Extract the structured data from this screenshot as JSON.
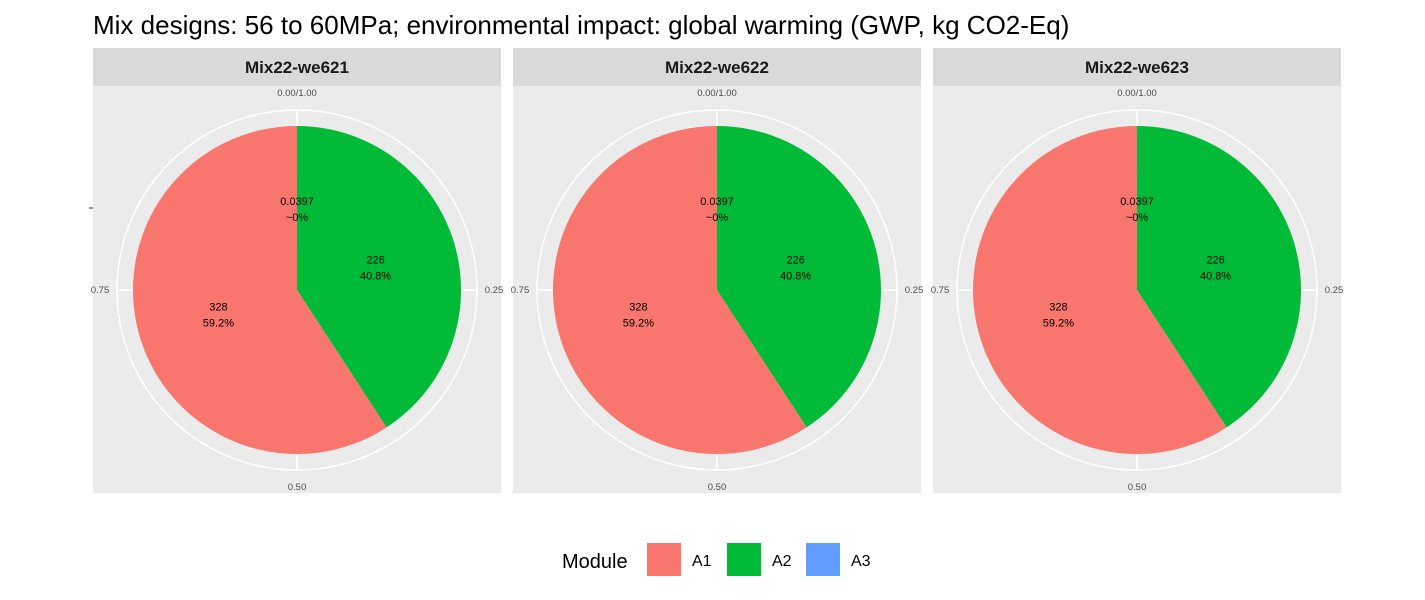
{
  "chart_data": {
    "type": "pie",
    "title": "Mix designs: 56 to 60MPa; environmental impact: global warming (GWP, kg CO2-Eq)",
    "theta_ticks": [
      "0.00/1.00",
      "0.25",
      "0.50",
      "0.75"
    ],
    "legend": {
      "title": "Module",
      "position": "bottom",
      "entries": [
        {
          "label": "A1",
          "color": "#F8766D"
        },
        {
          "label": "A2",
          "color": "#00BA38"
        },
        {
          "label": "A3",
          "color": "#619CFF"
        }
      ]
    },
    "panels": [
      {
        "label": "Mix22-we621",
        "slices": [
          {
            "name": "A3",
            "value": 0.0397,
            "value_label": "0.0397",
            "pct_label": "~0%",
            "color": "#619CFF"
          },
          {
            "name": "A2",
            "value": 226,
            "value_label": "226",
            "pct_label": "40.8%",
            "color": "#00BA38"
          },
          {
            "name": "A1",
            "value": 328,
            "value_label": "328",
            "pct_label": "59.2%",
            "color": "#F8766D"
          }
        ]
      },
      {
        "label": "Mix22-we622",
        "slices": [
          {
            "name": "A3",
            "value": 0.0397,
            "value_label": "0.0397",
            "pct_label": "~0%",
            "color": "#619CFF"
          },
          {
            "name": "A2",
            "value": 226,
            "value_label": "226",
            "pct_label": "40.8%",
            "color": "#00BA38"
          },
          {
            "name": "A1",
            "value": 328,
            "value_label": "328",
            "pct_label": "59.2%",
            "color": "#F8766D"
          }
        ]
      },
      {
        "label": "Mix22-we623",
        "slices": [
          {
            "name": "A3",
            "value": 0.0397,
            "value_label": "0.0397",
            "pct_label": "~0%",
            "color": "#619CFF"
          },
          {
            "name": "A2",
            "value": 226,
            "value_label": "226",
            "pct_label": "40.8%",
            "color": "#00BA38"
          },
          {
            "name": "A1",
            "value": 328,
            "value_label": "328",
            "pct_label": "59.2%",
            "color": "#F8766D"
          }
        ]
      }
    ]
  }
}
